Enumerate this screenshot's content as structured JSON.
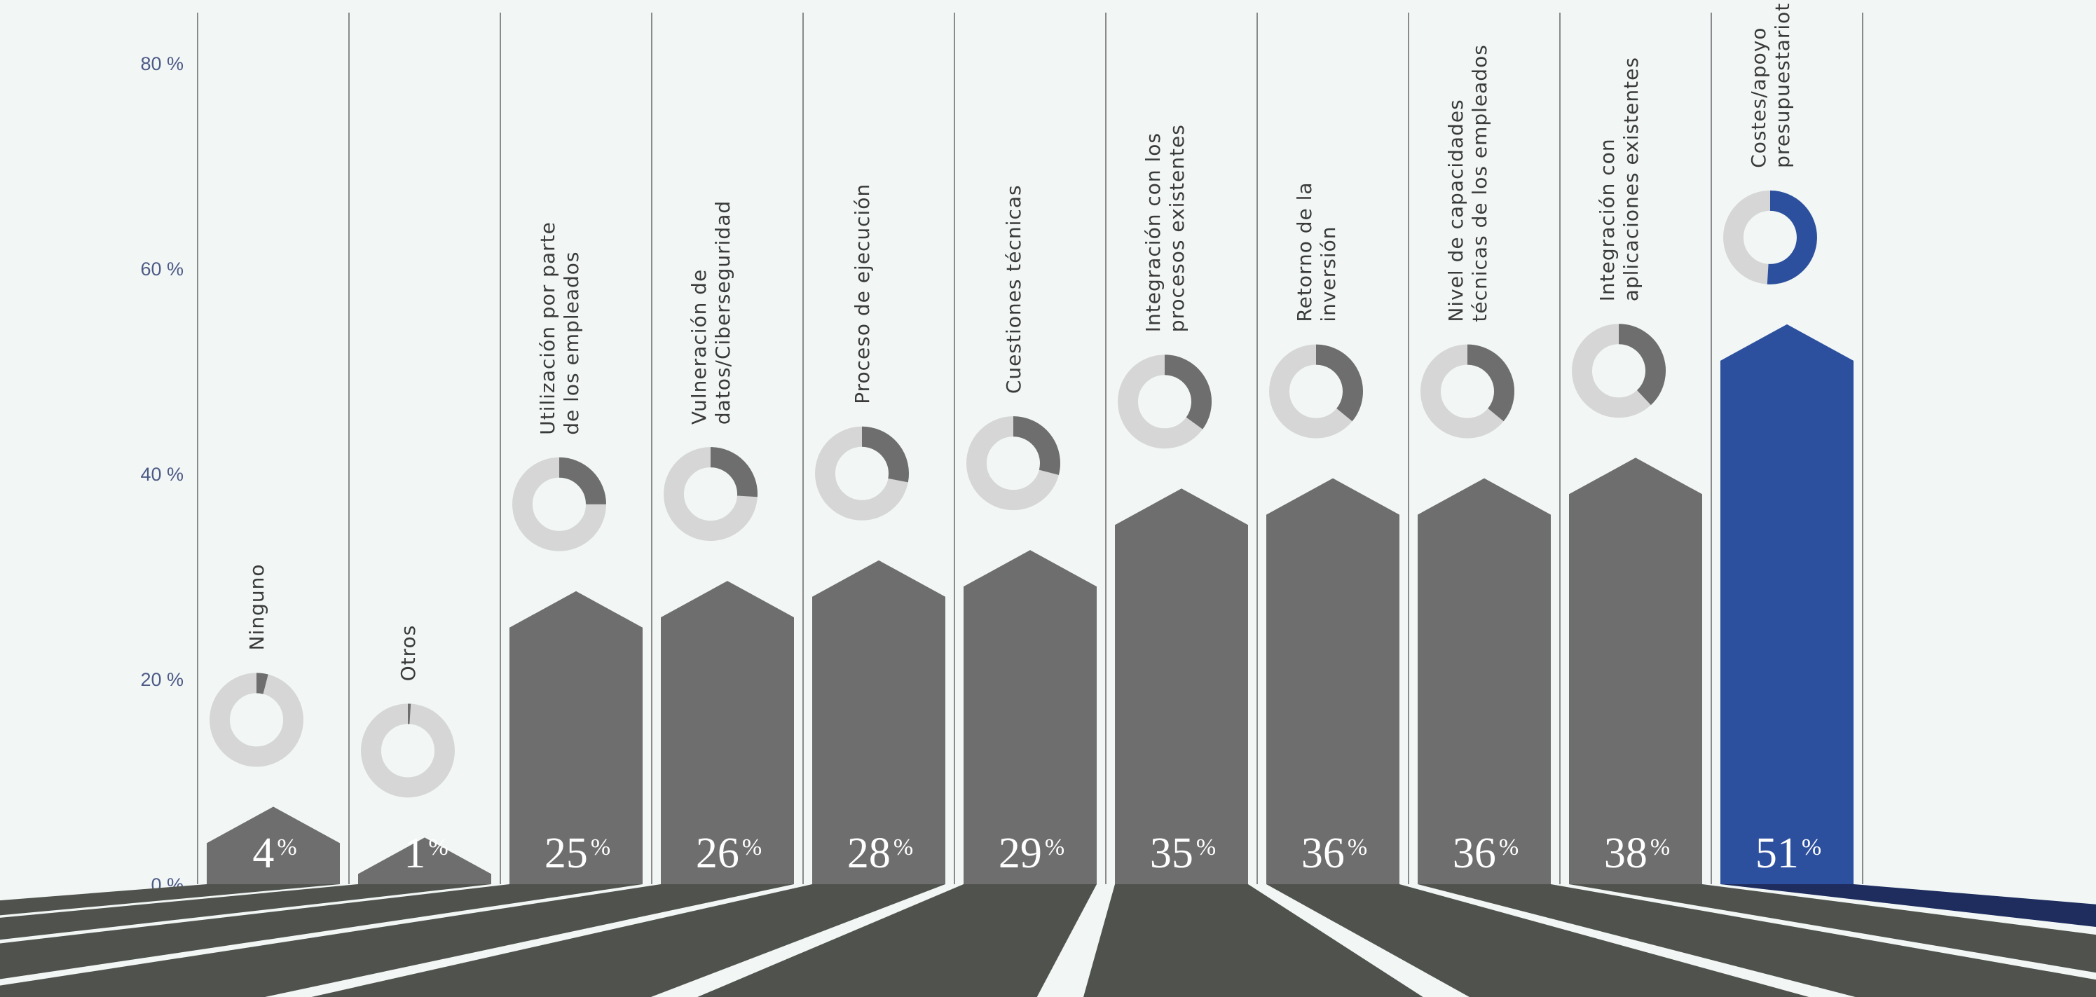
{
  "chart_data": {
    "type": "bar",
    "ylim": [
      0,
      80
    ],
    "yticks": [
      "0 %",
      "20 %",
      "40 %",
      "60 %",
      "80 %"
    ],
    "grid": false,
    "categories": [
      [
        "Ninguno"
      ],
      [
        "Otros"
      ],
      [
        "Utilización por parte",
        "de los empleados"
      ],
      [
        "Vulneración de",
        "datos/Ciberseguridad"
      ],
      [
        "Proceso de ejecución"
      ],
      [
        "Cuestiones técnicas"
      ],
      [
        "Integración con los",
        "procesos existentes"
      ],
      [
        "Retorno de la",
        "inversión"
      ],
      [
        "Nivel de capacidades",
        "técnicas de los empleados"
      ],
      [
        "Integración con",
        "aplicaciones existentes"
      ],
      [
        "Costes/apoyo",
        "presupuestariot"
      ]
    ],
    "values": [
      4,
      1,
      25,
      26,
      28,
      29,
      35,
      36,
      36,
      38,
      51
    ],
    "value_labels": [
      "4",
      "1",
      "25",
      "26",
      "28",
      "29",
      "35",
      "36",
      "36",
      "38",
      "51"
    ],
    "unit": "%",
    "highlight_index": 10
  },
  "colors": {
    "background": "#f2f7f6",
    "bar": "#6e6e6e",
    "bar_highlight": "#2c4f9e",
    "base": "#50534d",
    "base_highlight": "#1e2c5e",
    "donut_track": "#d6d6d6",
    "donut_fill": "#6e6e6e",
    "donut_fill_highlight": "#2c4f9e",
    "divider": "#8a8a8a",
    "axis_text": "#4e5a86"
  }
}
